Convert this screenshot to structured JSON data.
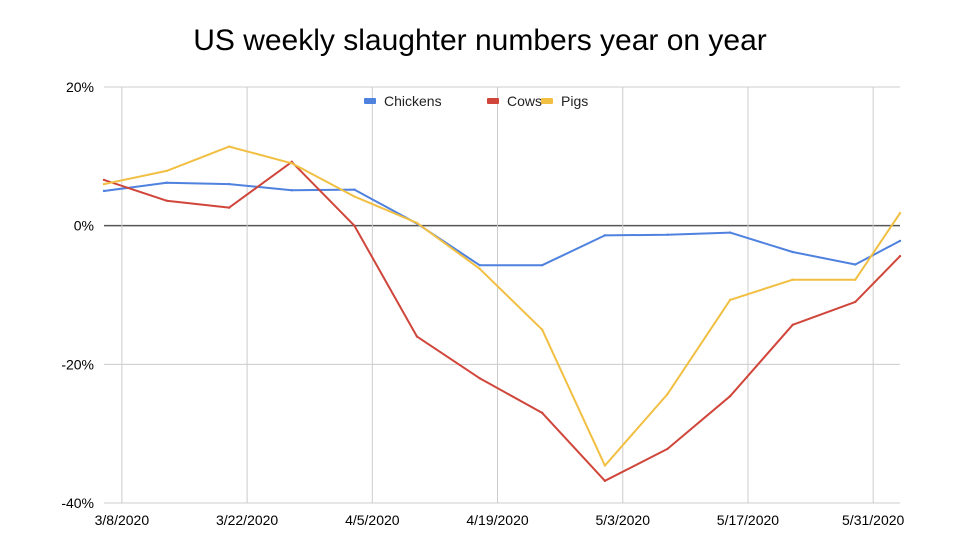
{
  "chart_data": {
    "type": "line",
    "title": "US weekly slaughter numbers year on year",
    "xlabel": "",
    "ylabel": "",
    "x_tick_labels": [
      "3/8/2020",
      "3/22/2020",
      "4/5/2020",
      "4/19/2020",
      "5/3/2020",
      "5/17/2020",
      "5/31/2020"
    ],
    "x_ticks": [
      "2020-03-08",
      "2020-03-22",
      "2020-04-05",
      "2020-04-19",
      "2020-05-03",
      "2020-05-17",
      "2020-05-31"
    ],
    "xlim": [
      "2020-03-06",
      "2020-06-03"
    ],
    "y_tick_labels": [
      "20%",
      "0%",
      "-20%",
      "-40%"
    ],
    "y_ticks": [
      20,
      0,
      -20,
      -40
    ],
    "ylim": [
      -40,
      20
    ],
    "grid": true,
    "zero_line": true,
    "legend": {
      "position": "top-center"
    },
    "series": [
      {
        "name": "Chickens",
        "color": "#4f81df",
        "points": [
          [
            "2020-03-06",
            5.0
          ],
          [
            "2020-03-13",
            6.2
          ],
          [
            "2020-03-20",
            6.0
          ],
          [
            "2020-03-27",
            5.1
          ],
          [
            "2020-04-03",
            5.2
          ],
          [
            "2020-04-10",
            0.3
          ],
          [
            "2020-04-17",
            -5.7
          ],
          [
            "2020-04-24",
            -5.7
          ],
          [
            "2020-05-01",
            -1.4
          ],
          [
            "2020-05-08",
            -1.3
          ],
          [
            "2020-05-15",
            -1.0
          ],
          [
            "2020-05-22",
            -3.8
          ],
          [
            "2020-05-29",
            -5.6
          ],
          [
            "2020-06-03",
            -2.2
          ]
        ]
      },
      {
        "name": "Cows",
        "color": "#d0463b",
        "points": [
          [
            "2020-03-06",
            6.6
          ],
          [
            "2020-03-13",
            3.6
          ],
          [
            "2020-03-20",
            2.6
          ],
          [
            "2020-03-27",
            9.2
          ],
          [
            "2020-04-03",
            0.0
          ],
          [
            "2020-04-10",
            -16.0
          ],
          [
            "2020-04-17",
            -22.0
          ],
          [
            "2020-04-24",
            -27.0
          ],
          [
            "2020-05-01",
            -36.8
          ],
          [
            "2020-05-08",
            -32.2
          ],
          [
            "2020-05-15",
            -24.6
          ],
          [
            "2020-05-22",
            -14.3
          ],
          [
            "2020-05-29",
            -11.0
          ],
          [
            "2020-06-03",
            -4.4
          ]
        ]
      },
      {
        "name": "Pigs",
        "color": "#f1bf42",
        "points": [
          [
            "2020-03-06",
            6.0
          ],
          [
            "2020-03-13",
            7.9
          ],
          [
            "2020-03-20",
            11.4
          ],
          [
            "2020-03-27",
            9.0
          ],
          [
            "2020-04-03",
            4.2
          ],
          [
            "2020-04-10",
            0.4
          ],
          [
            "2020-04-17",
            -6.2
          ],
          [
            "2020-04-24",
            -15.0
          ],
          [
            "2020-05-01",
            -34.6
          ],
          [
            "2020-05-08",
            -24.3
          ],
          [
            "2020-05-15",
            -10.7
          ],
          [
            "2020-05-22",
            -7.8
          ],
          [
            "2020-05-29",
            -7.8
          ],
          [
            "2020-06-03",
            1.8
          ]
        ]
      }
    ]
  }
}
